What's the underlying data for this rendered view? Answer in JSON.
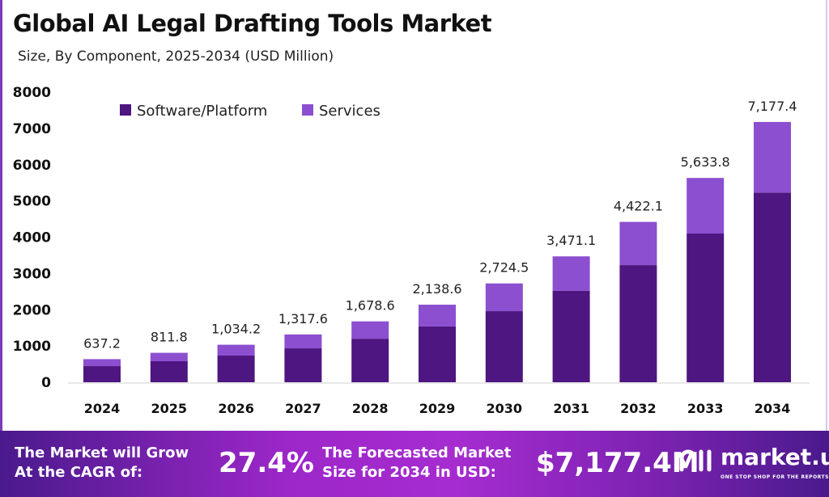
{
  "chart_data": {
    "type": "bar",
    "stacked": true,
    "title": "Global AI Legal Drafting Tools Market",
    "subtitle": "Size, By Component, 2025-2034 (USD Million)",
    "categories": [
      "2024",
      "2025",
      "2026",
      "2027",
      "2028",
      "2029",
      "2030",
      "2031",
      "2032",
      "2033",
      "2034"
    ],
    "series": [
      {
        "name": "Software/Platform",
        "color": "#4e1680",
        "values": [
          445,
          580,
          735,
          935,
          1200,
          1540,
          1960,
          2520,
          3230,
          4100,
          5230
        ]
      },
      {
        "name": "Services",
        "color": "#8b4fd0",
        "values": [
          192.2,
          231.8,
          299.2,
          382.6,
          478.6,
          598.6,
          764.5,
          951.1,
          1192.1,
          1533.8,
          1947.4
        ]
      }
    ],
    "totals_labels": [
      "637.2",
      "811.8",
      "1,034.2",
      "1,317.6",
      "1,678.6",
      "2,138.6",
      "2,724.5",
      "3,471.1",
      "4,422.1",
      "5,633.8",
      "7,177.4"
    ],
    "totals": [
      637.2,
      811.8,
      1034.2,
      1317.6,
      1678.6,
      2138.6,
      2724.5,
      3471.1,
      4422.1,
      5633.8,
      7177.4
    ],
    "ylim": [
      0,
      8000
    ],
    "yticks": [
      "0",
      "1000",
      "2000",
      "3000",
      "4000",
      "5000",
      "6000",
      "7000",
      "8000"
    ],
    "grid": false,
    "legend_position": "top-left"
  },
  "footer": {
    "cagr_text_1": "The Market will Grow",
    "cagr_text_2": "At the CAGR of:",
    "cagr_value": "27.4%",
    "forecast_text_1": "The Forecasted Market",
    "forecast_text_2": "Size for 2034 in USD:",
    "forecast_value": "$7,177.4M",
    "brand": "market.us",
    "tagline": "ONE STOP SHOP FOR THE REPORTS"
  }
}
